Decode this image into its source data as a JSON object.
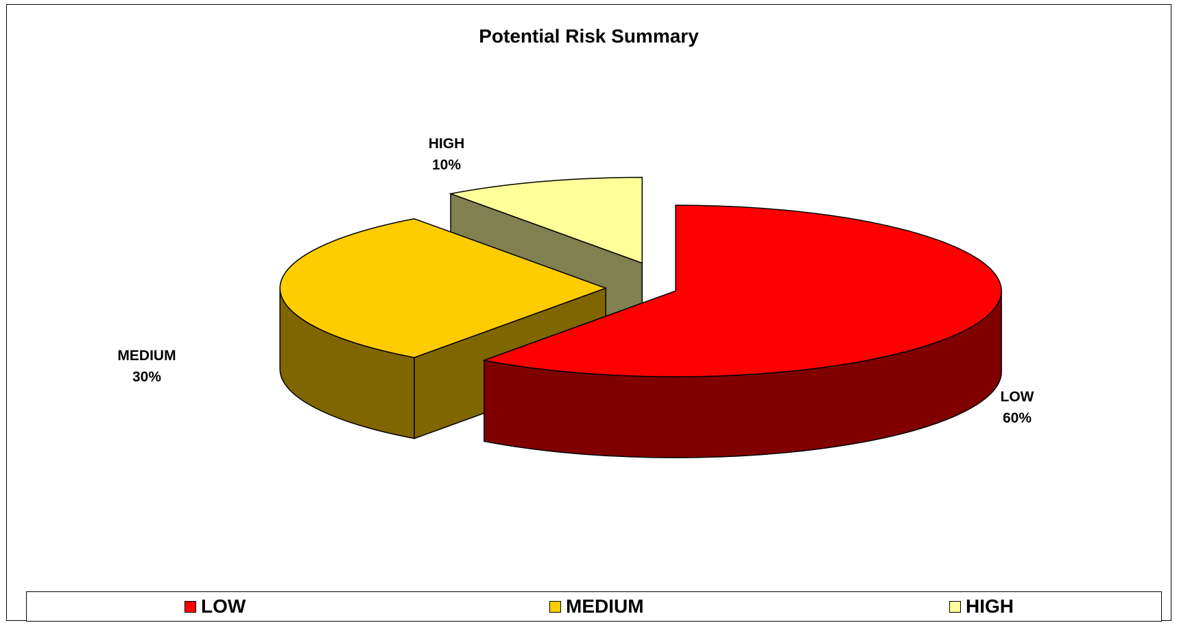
{
  "chart_data": {
    "type": "pie",
    "title": "Potential Risk Summary",
    "three_d": true,
    "exploded": true,
    "categories": [
      "LOW",
      "MEDIUM",
      "HIGH"
    ],
    "values": [
      60,
      30,
      10
    ],
    "value_labels": [
      "60%",
      "30%",
      "10%"
    ],
    "colors": [
      "#FF0000",
      "#FFCC00",
      "#FFFF99"
    ],
    "side_colors": [
      "#800000",
      "#806600",
      "#808050"
    ],
    "legend": {
      "position": "bottom",
      "entries": [
        "LOW",
        "MEDIUM",
        "HIGH"
      ]
    }
  }
}
